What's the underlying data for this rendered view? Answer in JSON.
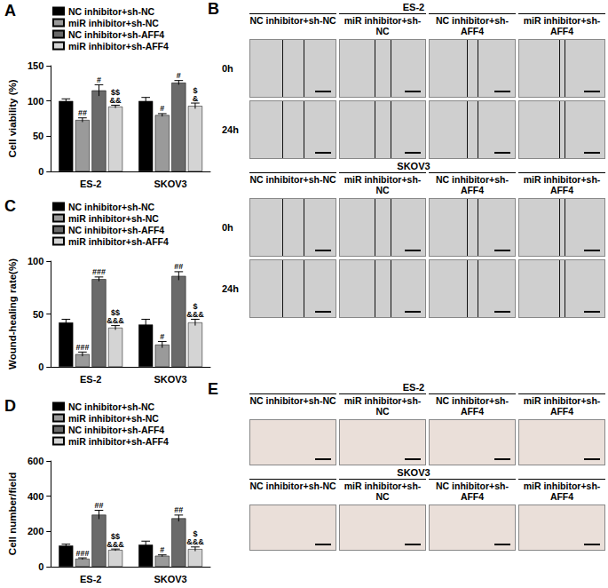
{
  "chart_data": [
    {
      "type": "bar",
      "panel": "A",
      "y_label": "Cell viability (%)",
      "categories": [
        "ES-2",
        "SKOV3"
      ],
      "ylim": [
        0,
        150
      ],
      "yticks": [
        0,
        50,
        100,
        150
      ],
      "legend": "top",
      "series": [
        {
          "name": "NC inhibitor+sh-NC",
          "color": "#000000",
          "values": [
            100,
            100
          ],
          "errors": [
            3,
            5
          ],
          "annotations": [
            [],
            []
          ]
        },
        {
          "name": "miR inhibitor+sh-NC",
          "color": "#9a9a9a",
          "values": [
            73,
            80
          ],
          "errors": [
            3,
            2
          ],
          "annotations": [
            [
              "##"
            ],
            [
              "#"
            ]
          ]
        },
        {
          "name": "NC inhibitor+sh-AFF4",
          "color": "#6a6a6a",
          "values": [
            115,
            126
          ],
          "errors": [
            8,
            3
          ],
          "annotations": [
            [
              "#"
            ],
            [
              "#"
            ]
          ]
        },
        {
          "name": "miR inhibitor+sh-AFF4",
          "color": "#d4d4d4",
          "values": [
            92,
            93
          ],
          "errors": [
            2,
            4
          ],
          "annotations": [
            [
              "$$",
              "&&"
            ],
            [
              "$",
              "&"
            ]
          ]
        }
      ]
    },
    {
      "type": "bar",
      "panel": "C",
      "y_label": "Wound-healing rate(%)",
      "categories": [
        "ES-2",
        "SKOV3"
      ],
      "ylim": [
        0,
        100
      ],
      "yticks": [
        0,
        50,
        100
      ],
      "legend": "top",
      "series": [
        {
          "name": "NC inhibitor+sh-NC",
          "color": "#000000",
          "values": [
            42,
            40
          ],
          "errors": [
            3,
            5
          ],
          "annotations": [
            [],
            []
          ]
        },
        {
          "name": "miR inhibitor+sh-NC",
          "color": "#9a9a9a",
          "values": [
            12,
            21
          ],
          "errors": [
            2,
            3
          ],
          "annotations": [
            [
              "###"
            ],
            [
              "#"
            ]
          ]
        },
        {
          "name": "NC inhibitor+sh-AFF4",
          "color": "#6a6a6a",
          "values": [
            83,
            86
          ],
          "errors": [
            2,
            4
          ],
          "annotations": [
            [
              "###"
            ],
            [
              "##"
            ]
          ]
        },
        {
          "name": "miR inhibitor+sh-AFF4",
          "color": "#d4d4d4",
          "values": [
            37,
            42
          ],
          "errors": [
            2,
            3
          ],
          "annotations": [
            [
              "$$",
              "&&&"
            ],
            [
              "$",
              "&&&"
            ]
          ]
        }
      ]
    },
    {
      "type": "bar",
      "panel": "D",
      "y_label": "Cell number/field",
      "categories": [
        "ES-2",
        "SKOV3"
      ],
      "ylim": [
        0,
        600
      ],
      "yticks": [
        0,
        200,
        400,
        600
      ],
      "legend": "top",
      "series": [
        {
          "name": "NC inhibitor+sh-NC",
          "color": "#000000",
          "values": [
            120,
            125
          ],
          "errors": [
            8,
            20
          ],
          "annotations": [
            [],
            []
          ]
        },
        {
          "name": "miR inhibitor+sh-NC",
          "color": "#9a9a9a",
          "values": [
            45,
            62
          ],
          "errors": [
            5,
            5
          ],
          "annotations": [
            [
              "###"
            ],
            [
              "#"
            ]
          ]
        },
        {
          "name": "NC inhibitor+sh-AFF4",
          "color": "#6a6a6a",
          "values": [
            295,
            275
          ],
          "errors": [
            25,
            18
          ],
          "annotations": [
            [
              "##"
            ],
            [
              "##"
            ]
          ]
        },
        {
          "name": "miR inhibitor+sh-AFF4",
          "color": "#d4d4d4",
          "values": [
            95,
            100
          ],
          "errors": [
            5,
            12
          ],
          "annotations": [
            [
              "$$",
              "&&&"
            ],
            [
              "$",
              "&&&"
            ]
          ]
        }
      ]
    }
  ],
  "image_panels": [
    {
      "panel": "B",
      "type": "wound",
      "groups": [
        {
          "title": "ES-2",
          "columns": [
            "NC inhibitor+sh-NC",
            "miR inhibitor+sh-NC",
            "NC inhibitor+sh-AFF4",
            "miR inhibitor+sh-AFF4"
          ],
          "rows": [
            "0h",
            "24h"
          ]
        },
        {
          "title": "SKOV3",
          "columns": [
            "NC inhibitor+sh-NC",
            "miR inhibitor+sh-NC",
            "NC inhibitor+sh-AFF4",
            "miR inhibitor+sh-AFF4"
          ],
          "rows": [
            "0h",
            "24h"
          ]
        }
      ]
    },
    {
      "panel": "E",
      "type": "stain",
      "groups": [
        {
          "title": "ES-2",
          "columns": [
            "NC inhibitor+sh-NC",
            "miR inhibitor+sh-NC",
            "NC inhibitor+sh-AFF4",
            "miR inhibitor+sh-AFF4"
          ],
          "rows": [
            null
          ]
        },
        {
          "title": "SKOV3",
          "columns": [
            "NC inhibitor+sh-NC",
            "miR inhibitor+sh-NC",
            "NC inhibitor+sh-AFF4",
            "miR inhibitor+sh-AFF4"
          ],
          "rows": [
            null
          ]
        }
      ]
    }
  ]
}
